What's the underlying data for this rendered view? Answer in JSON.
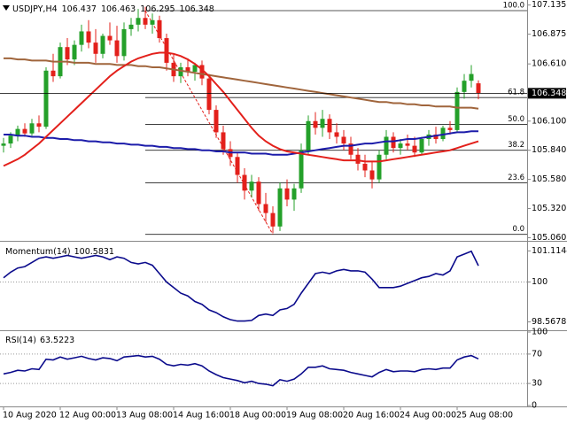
{
  "chart_data": [
    {
      "type": "candlestick",
      "title": "USDJPY,H4",
      "categories": [
        "10 Aug 2020",
        null,
        null,
        null,
        null,
        null,
        null,
        null,
        "12 Aug 00:00",
        null,
        null,
        null,
        null,
        null,
        null,
        null,
        "13 Aug 08:00",
        null,
        null,
        null,
        null,
        null,
        null,
        null,
        "14 Aug 16:00",
        null,
        null,
        null,
        null,
        null,
        null,
        null,
        "18 Aug 00:00",
        null,
        null,
        null,
        null,
        null,
        null,
        null,
        "19 Aug 08:00",
        null,
        null,
        null,
        null,
        null,
        null,
        null,
        "20 Aug 16:00",
        null,
        null,
        null,
        null,
        null,
        null,
        null,
        "24 Aug 00:00",
        null,
        null,
        null,
        null,
        null,
        null,
        null,
        "25 Aug 08:00",
        null,
        null,
        null
      ],
      "open": [
        105.88,
        105.9,
        105.97,
        106.03,
        105.99,
        106.08,
        106.05,
        106.55,
        106.5,
        106.76,
        106.65,
        106.78,
        106.9,
        106.8,
        106.7,
        106.86,
        106.82,
        106.68,
        106.92,
        106.96,
        107.02,
        106.96,
        107.0,
        106.84,
        106.62,
        106.5,
        106.58,
        106.54,
        106.6,
        106.48,
        106.2,
        106.0,
        105.85,
        105.78,
        105.62,
        105.48,
        105.56,
        105.36,
        105.28,
        105.16,
        105.5,
        105.4,
        105.5,
        105.84,
        106.1,
        106.04,
        106.12,
        106.0,
        105.96,
        105.9,
        105.8,
        105.72,
        105.66,
        105.58,
        105.8,
        105.96,
        105.86,
        105.9,
        105.88,
        105.82,
        105.94,
        105.98,
        105.94,
        106.04,
        106.02,
        106.36,
        106.46,
        106.437
      ],
      "high": [
        105.95,
        106.0,
        106.06,
        106.08,
        106.12,
        106.15,
        106.58,
        106.7,
        106.8,
        106.84,
        106.82,
        106.96,
        107.0,
        106.92,
        106.88,
        106.98,
        106.95,
        106.98,
        107.02,
        107.1,
        107.12,
        107.06,
        107.04,
        106.88,
        106.7,
        106.62,
        106.66,
        106.62,
        106.64,
        106.52,
        106.24,
        106.06,
        105.92,
        105.82,
        105.68,
        105.62,
        105.6,
        105.46,
        105.34,
        105.55,
        105.58,
        105.54,
        105.9,
        106.15,
        106.18,
        106.2,
        106.16,
        106.08,
        106.02,
        105.96,
        105.86,
        105.8,
        105.74,
        105.84,
        106.02,
        106.0,
        105.94,
        105.98,
        105.96,
        105.96,
        106.02,
        106.05,
        106.06,
        106.1,
        106.4,
        106.52,
        106.6,
        106.463
      ],
      "low": [
        105.82,
        105.86,
        105.92,
        105.96,
        105.97,
        106.0,
        106.03,
        106.45,
        106.48,
        106.6,
        106.6,
        106.72,
        106.75,
        106.62,
        106.66,
        106.78,
        106.62,
        106.64,
        106.86,
        106.9,
        106.92,
        106.88,
        106.8,
        106.55,
        106.45,
        106.44,
        106.5,
        106.46,
        106.42,
        106.16,
        105.95,
        105.8,
        105.7,
        105.55,
        105.4,
        105.42,
        105.3,
        105.2,
        105.1,
        105.12,
        105.34,
        105.3,
        105.46,
        105.8,
        105.98,
        105.96,
        105.94,
        105.9,
        105.84,
        105.76,
        105.66,
        105.6,
        105.5,
        105.55,
        105.76,
        105.82,
        105.8,
        105.84,
        105.78,
        105.8,
        105.88,
        105.9,
        105.92,
        105.98,
        106.0,
        106.3,
        106.4,
        106.295
      ],
      "close": [
        105.9,
        105.97,
        106.03,
        105.99,
        106.08,
        106.05,
        106.55,
        106.5,
        106.76,
        106.65,
        106.78,
        106.9,
        106.8,
        106.7,
        106.86,
        106.82,
        106.68,
        106.92,
        106.96,
        107.02,
        106.96,
        107.0,
        106.84,
        106.62,
        106.5,
        106.58,
        106.54,
        106.6,
        106.48,
        106.2,
        106.0,
        105.85,
        105.78,
        105.62,
        105.48,
        105.56,
        105.36,
        105.28,
        105.16,
        105.5,
        105.4,
        105.5,
        105.84,
        106.1,
        106.04,
        106.12,
        106.0,
        105.96,
        105.9,
        105.8,
        105.72,
        105.66,
        105.58,
        105.8,
        105.96,
        105.86,
        105.9,
        105.88,
        105.82,
        105.94,
        105.98,
        105.94,
        106.04,
        106.02,
        106.36,
        106.46,
        106.52,
        106.348
      ],
      "up_color": "#24a02a",
      "down_color": "#e3201b",
      "moving_averages": [
        {
          "color": "#a0653c",
          "values": [
            106.66,
            106.66,
            106.65,
            106.65,
            106.64,
            106.64,
            106.64,
            106.63,
            106.63,
            106.63,
            106.62,
            106.62,
            106.62,
            106.61,
            106.61,
            106.61,
            106.6,
            106.6,
            106.6,
            106.59,
            106.59,
            106.58,
            106.58,
            106.57,
            106.56,
            106.55,
            106.54,
            106.53,
            106.52,
            106.51,
            106.5,
            106.49,
            106.48,
            106.47,
            106.46,
            106.45,
            106.44,
            106.43,
            106.42,
            106.41,
            106.4,
            106.39,
            106.38,
            106.37,
            106.36,
            106.35,
            106.34,
            106.33,
            106.32,
            106.31,
            106.3,
            106.29,
            106.28,
            106.27,
            106.27,
            106.26,
            106.26,
            106.25,
            106.25,
            106.24,
            106.24,
            106.23,
            106.23,
            106.23,
            106.22,
            106.22,
            106.22,
            106.21
          ]
        },
        {
          "color": "#1c1caa",
          "values": [
            105.98,
            105.98,
            105.97,
            105.97,
            105.96,
            105.96,
            105.95,
            105.95,
            105.94,
            105.94,
            105.93,
            105.93,
            105.92,
            105.92,
            105.91,
            105.91,
            105.9,
            105.9,
            105.89,
            105.89,
            105.88,
            105.88,
            105.87,
            105.87,
            105.86,
            105.86,
            105.85,
            105.85,
            105.84,
            105.84,
            105.83,
            105.83,
            105.82,
            105.82,
            105.82,
            105.81,
            105.81,
            105.81,
            105.8,
            105.8,
            105.8,
            105.81,
            105.82,
            105.83,
            105.84,
            105.85,
            105.86,
            105.87,
            105.88,
            105.88,
            105.89,
            105.9,
            105.9,
            105.91,
            105.92,
            105.92,
            105.93,
            105.94,
            105.94,
            105.95,
            105.96,
            105.97,
            105.98,
            105.99,
            106.0,
            106.0,
            106.01,
            106.01
          ]
        },
        {
          "color": "#e3201b",
          "values": [
            105.7,
            105.73,
            105.76,
            105.8,
            105.85,
            105.9,
            105.96,
            106.02,
            106.08,
            106.14,
            106.2,
            106.26,
            106.32,
            106.38,
            106.44,
            106.5,
            106.55,
            106.59,
            106.63,
            106.66,
            106.68,
            106.7,
            106.71,
            106.71,
            106.7,
            106.68,
            106.65,
            106.61,
            106.56,
            106.5,
            106.43,
            106.36,
            106.28,
            106.2,
            106.12,
            106.04,
            105.97,
            105.92,
            105.88,
            105.85,
            105.83,
            105.82,
            105.81,
            105.8,
            105.79,
            105.78,
            105.77,
            105.76,
            105.75,
            105.75,
            105.75,
            105.74,
            105.74,
            105.74,
            105.75,
            105.76,
            105.77,
            105.78,
            105.79,
            105.8,
            105.81,
            105.82,
            105.83,
            105.84,
            105.86,
            105.88,
            105.9,
            105.92
          ]
        }
      ],
      "fibonacci": {
        "color": "#222222",
        "trend_color": "#e3201b",
        "levels": [
          "100.0",
          "61.8",
          "50.0",
          "38.2",
          "23.6",
          "0.0"
        ],
        "prices": [
          107.085,
          106.31,
          106.07,
          105.84,
          105.55,
          105.09
        ]
      },
      "ylim": [
        105.04,
        107.18
      ],
      "yticks": [
        107.135,
        106.875,
        {
          "value": 106.61,
          "label": "106.610"
        },
        {
          "value": 106.1,
          "label": "106.100"
        },
        {
          "value": 105.84,
          "label": "105.840"
        },
        {
          "value": 105.58,
          "label": "105.580"
        },
        {
          "value": 105.32,
          "label": "105.320"
        },
        {
          "value": 105.06,
          "label": "105.060"
        }
      ]
    },
    {
      "type": "line",
      "series": [
        {
          "name": "Momentum(14)",
          "color": "#0b0b8c",
          "values": [
            100.15,
            100.35,
            100.5,
            100.55,
            100.7,
            100.85,
            100.9,
            100.85,
            100.9,
            100.95,
            100.9,
            100.85,
            100.9,
            100.95,
            100.9,
            100.8,
            100.9,
            100.85,
            100.7,
            100.65,
            100.7,
            100.6,
            100.3,
            100.0,
            99.8,
            99.6,
            99.5,
            99.3,
            99.2,
            99.0,
            98.9,
            98.75,
            98.65,
            98.6,
            98.6,
            98.62,
            98.8,
            98.85,
            98.8,
            99.0,
            99.05,
            99.2,
            99.6,
            99.95,
            100.3,
            100.35,
            100.3,
            100.4,
            100.45,
            100.4,
            100.4,
            100.35,
            100.1,
            99.8,
            99.8,
            99.8,
            99.85,
            99.95,
            100.05,
            100.15,
            100.2,
            100.3,
            100.25,
            100.4,
            100.9,
            101.0,
            101.1,
            100.5831
          ]
        }
      ],
      "ylim": [
        98.3,
        101.38
      ],
      "yticks": [
        101.1144,
        100,
        98.5678
      ],
      "levels": [
        100
      ]
    },
    {
      "type": "line",
      "series": [
        {
          "name": "RSI(14)",
          "color": "#0b0b8c",
          "values": [
            43,
            45,
            48,
            47,
            50,
            49,
            63,
            62,
            66,
            63,
            65,
            67,
            64,
            62,
            65,
            64,
            61,
            66,
            67,
            68,
            66,
            67,
            63,
            56,
            54,
            56,
            55,
            57,
            54,
            47,
            42,
            38,
            36,
            34,
            31,
            33,
            30,
            29,
            27,
            35,
            33,
            36,
            43,
            52,
            52,
            54,
            50,
            49,
            48,
            45,
            43,
            41,
            39,
            45,
            49,
            46,
            47,
            47,
            46,
            49,
            50,
            49,
            51,
            51,
            62,
            66,
            68,
            63.5223
          ]
        }
      ],
      "ylim": [
        0,
        100
      ],
      "yticks": [
        100,
        70,
        30,
        0
      ],
      "levels": [
        70,
        30
      ]
    }
  ]
}
